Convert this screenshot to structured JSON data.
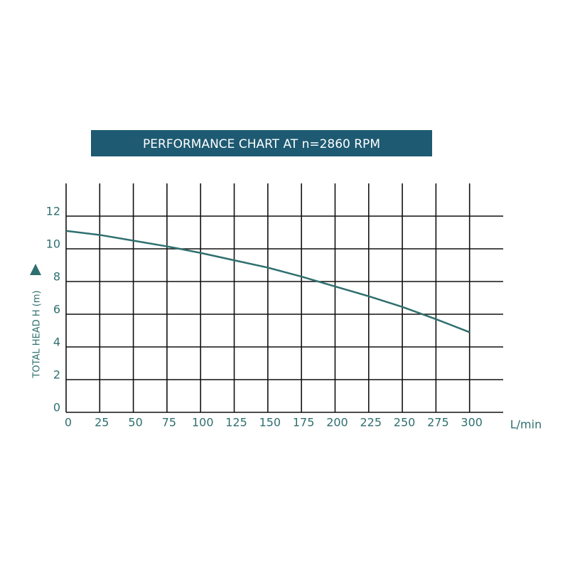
{
  "chart_data": {
    "type": "line",
    "title": "PERFORMANCE CHART AT  n=2860 RPM",
    "y_label": "TOTAL  HEAD  H  (m)",
    "x_label": "L/min",
    "x": [
      0,
      25,
      50,
      75,
      100,
      125,
      150,
      175,
      200,
      225,
      250,
      275,
      300
    ],
    "series": [
      {
        "color": "#2f6f6f",
        "values": [
          11.1,
          10.85,
          10.5,
          10.15,
          9.75,
          9.3,
          8.85,
          8.3,
          7.7,
          7.1,
          6.45,
          5.7,
          4.9
        ]
      }
    ],
    "xlim": [
      0,
      325
    ],
    "ylim": [
      0,
      14
    ],
    "xticks": [
      0,
      25,
      50,
      75,
      100,
      125,
      150,
      175,
      200,
      225,
      250,
      275,
      300
    ],
    "yticks": [
      0,
      2,
      4,
      6,
      8,
      10,
      12
    ],
    "grid": true
  }
}
